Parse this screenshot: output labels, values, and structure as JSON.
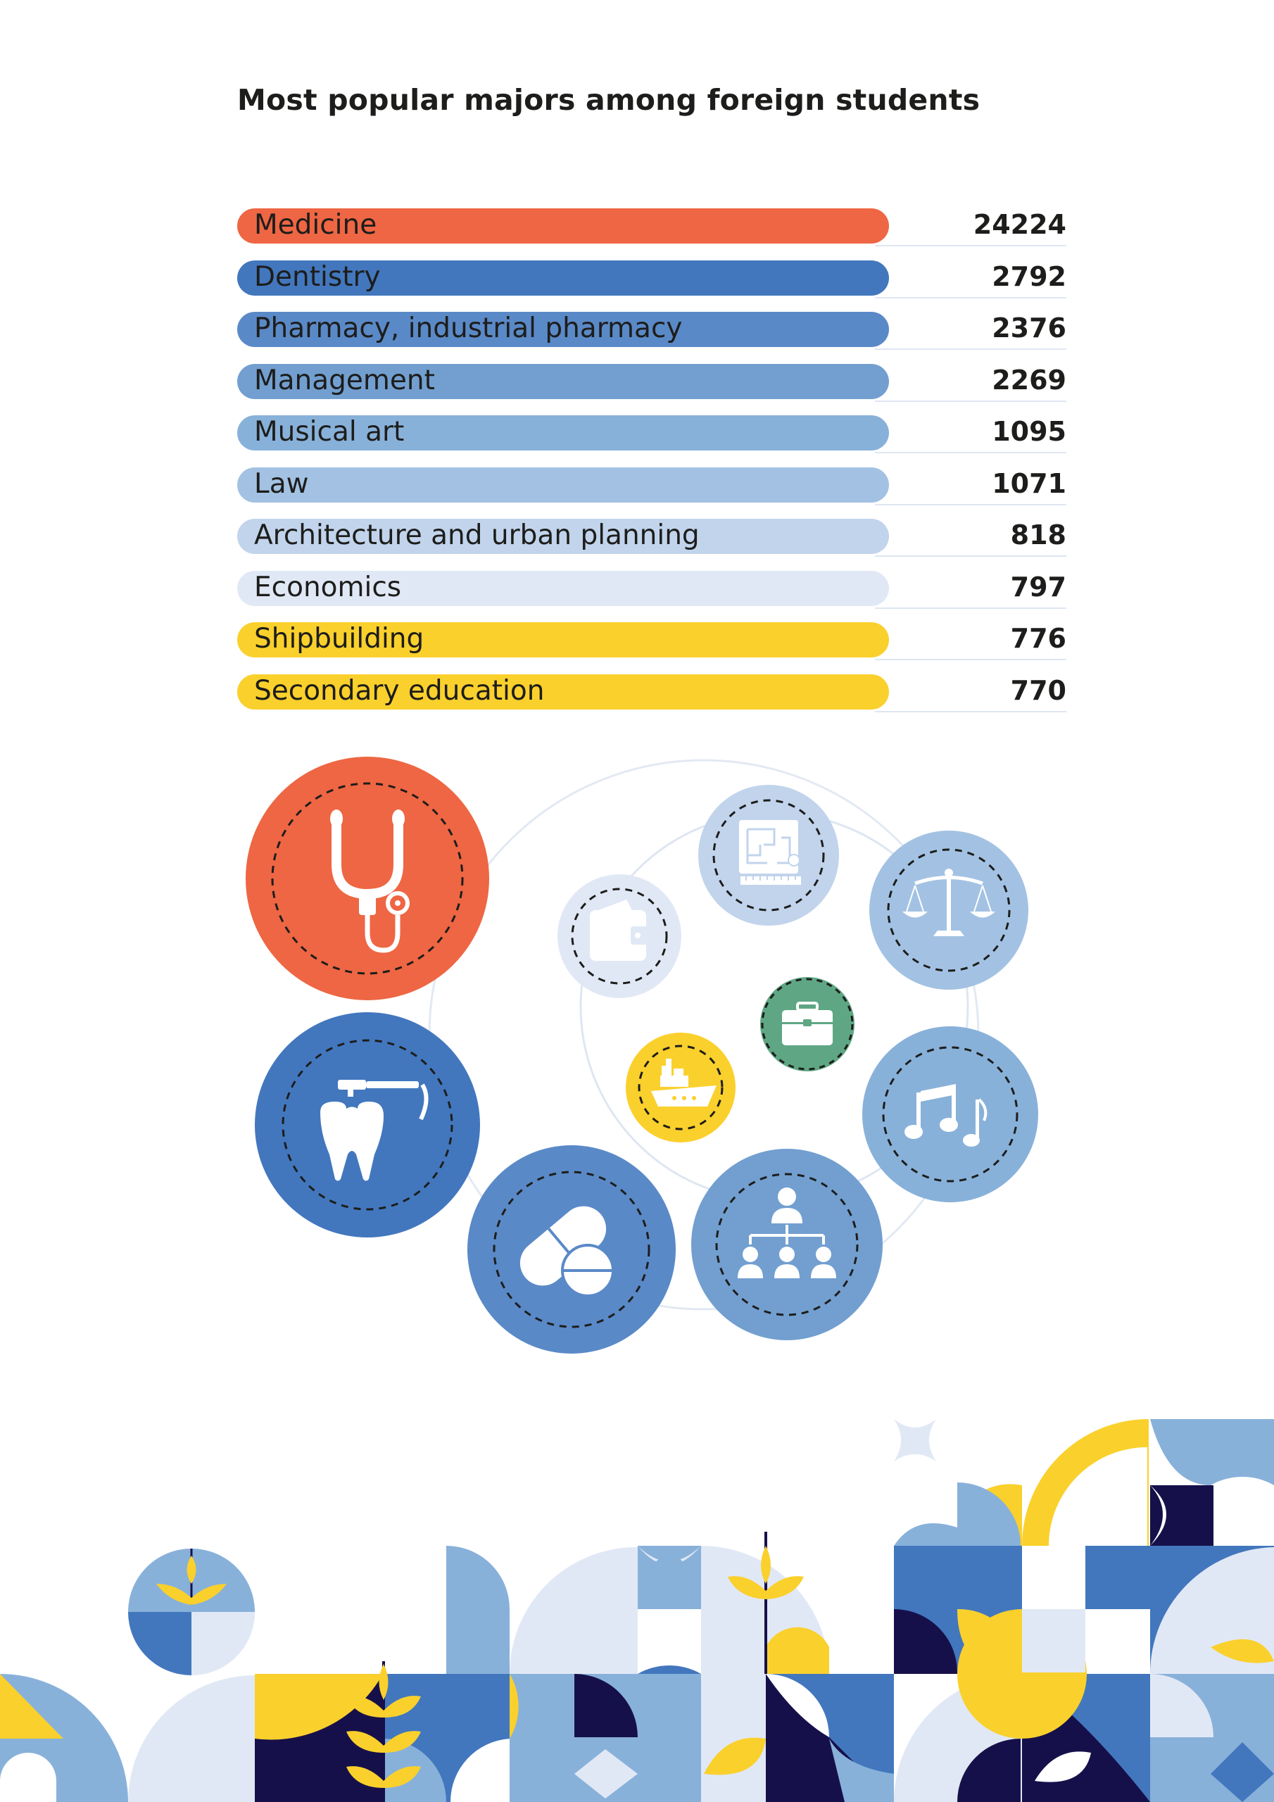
{
  "chart_data": {
    "type": "bar",
    "orientation": "horizontal",
    "title": "Most popular majors among foreign students",
    "categories": [
      "Medicine",
      "Dentistry",
      "Pharmacy, industrial pharmacy",
      "Management",
      "Musical art",
      "Law",
      "Architecture and urban planning",
      "Economics",
      "Shipbuilding",
      "Secondary education"
    ],
    "values": [
      24224,
      2792,
      2376,
      2269,
      1095,
      1071,
      818,
      797,
      776,
      770
    ],
    "colors": [
      "#ee6643",
      "#4277be",
      "#5a89c7",
      "#729fd0",
      "#88b1da",
      "#a3c2e3",
      "#c1d4ec",
      "#e1e8f5",
      "#fad02c",
      "#fad02c"
    ],
    "legend": "none",
    "grid": false
  },
  "icons": [
    {
      "name": "stethoscope-icon",
      "color": "#ee6643"
    },
    {
      "name": "tooth-icon",
      "color": "#4277be"
    },
    {
      "name": "pills-icon",
      "color": "#5a89c7"
    },
    {
      "name": "org-chart-icon",
      "color": "#729fd0"
    },
    {
      "name": "music-notes-icon",
      "color": "#88b1da"
    },
    {
      "name": "scales-icon",
      "color": "#a3c2e3"
    },
    {
      "name": "blueprint-icon",
      "color": "#c1d4ec"
    },
    {
      "name": "wallet-icon",
      "color": "#e1e8f5"
    },
    {
      "name": "ship-icon",
      "color": "#fad02c"
    },
    {
      "name": "briefcase-icon",
      "color": "#5fa784"
    }
  ]
}
